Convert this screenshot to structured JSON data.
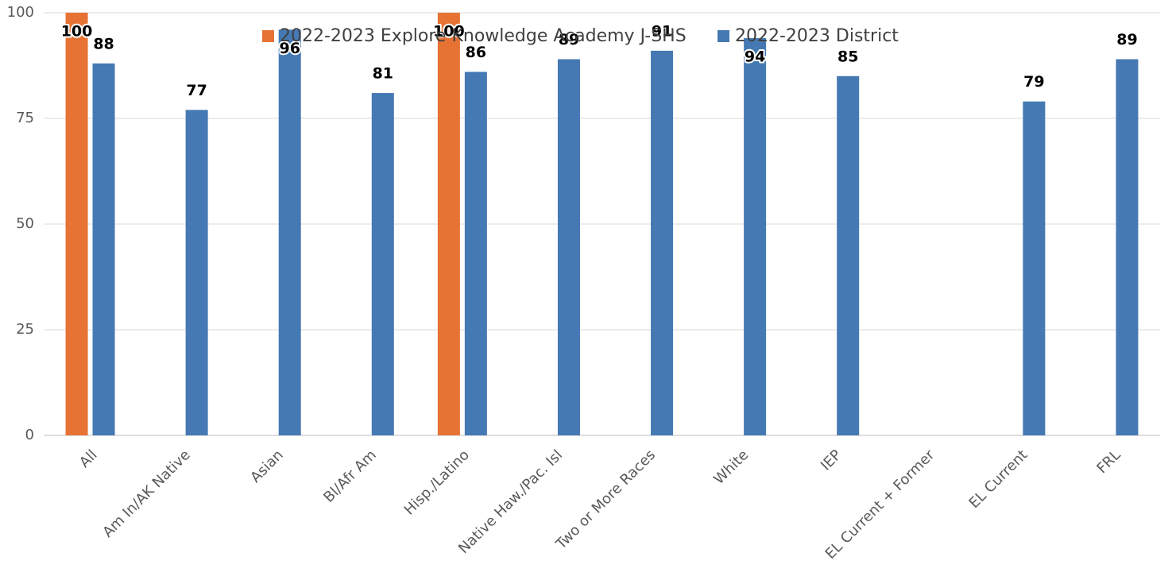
{
  "chart_data": {
    "type": "bar",
    "categories": [
      "All",
      "Am In/AK Native",
      "Asian",
      "Bl/Afr Am",
      "Hisp./Latino",
      "Native Haw./Pac. Isl",
      "Two or More Races",
      "White",
      "IEP",
      "EL Current + Former",
      "EL Current",
      "FRL"
    ],
    "series": [
      {
        "name": "2022-2023 Explore Knowledge Academy J-SHS",
        "color": "#e67334",
        "values": [
          100,
          null,
          null,
          null,
          100,
          null,
          null,
          null,
          null,
          null,
          null,
          null
        ]
      },
      {
        "name": "2022-2023 District",
        "color": "#4579b3",
        "values": [
          88,
          77,
          96,
          81,
          86,
          89,
          91,
          94,
          85,
          null,
          79,
          89
        ]
      }
    ],
    "ylim": [
      0,
      100
    ],
    "yticks": [
      0,
      25,
      50,
      75,
      100
    ],
    "grid": true,
    "legend": "top"
  }
}
